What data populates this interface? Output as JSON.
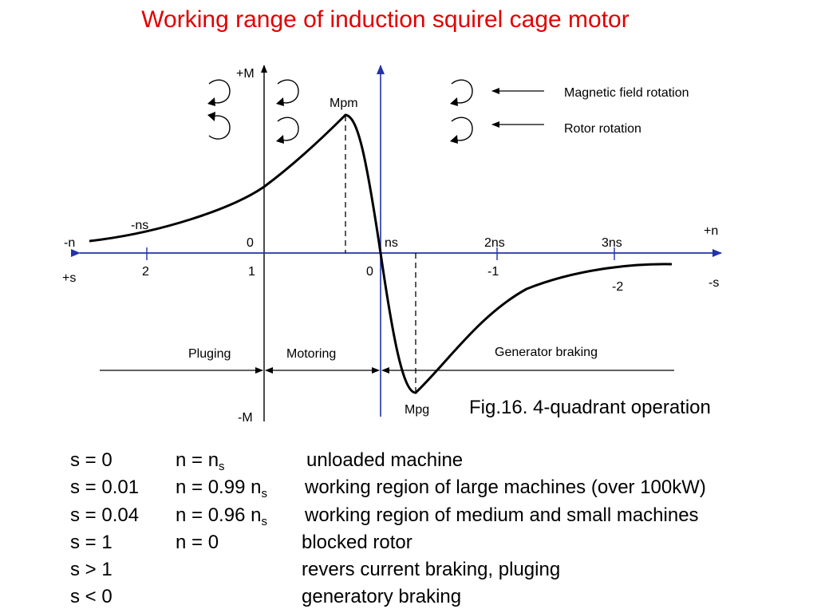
{
  "title": "Working range of induction squirel cage motor",
  "axes": {
    "plus_M": "+M",
    "minus_M": "-M",
    "plus_n": "+n",
    "minus_n": "-n",
    "plus_s": "+s",
    "minus_s": "-s"
  },
  "n_ticks": [
    "-ns",
    "0",
    "ns",
    "2ns",
    "3ns"
  ],
  "s_ticks": [
    "2",
    "1",
    "0",
    "-1",
    "-2"
  ],
  "points": {
    "max_motor": "Mpm",
    "max_generator": "Mpg"
  },
  "legend": {
    "magnetic_field": "Magnetic field rotation",
    "rotor": "Rotor rotation"
  },
  "regions": {
    "pluging": "Pluging",
    "motoring": "Motoring",
    "generator": "Generator braking"
  },
  "caption": "Fig.16. 4-quadrant operation",
  "rows": [
    {
      "s": "s = 0",
      "n": "n = n",
      "n_sub": "s",
      "desc": "unloaded machine"
    },
    {
      "s": "s = 0.01",
      "n": "n = 0.99 n",
      "n_sub": "s",
      "desc": "working region of large machines (over 100kW)"
    },
    {
      "s": "s = 0.04",
      "n": "n = 0.96 n",
      "n_sub": "s",
      "desc": "working region of medium and small machines"
    },
    {
      "s": "s = 1",
      "n": "n = 0",
      "n_sub": "",
      "desc": "blocked rotor"
    },
    {
      "s": "s > 1",
      "n": "",
      "n_sub": "",
      "desc": "revers current braking, pluging"
    },
    {
      "s": "s < 0",
      "n": "",
      "n_sub": "",
      "desc": "generatory braking"
    }
  ],
  "colors": {
    "title": "#e00000",
    "axis_blue": "#2233aa",
    "curve": "#000000"
  }
}
